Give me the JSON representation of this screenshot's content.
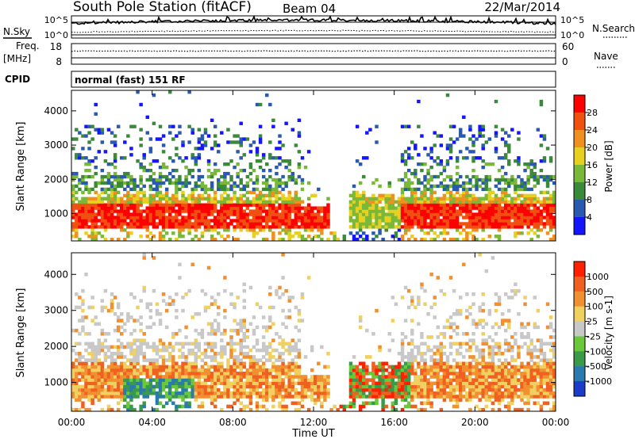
{
  "header": {
    "title": "South Pole Station (fitACF)",
    "beam": "Beam 04",
    "date": "22/Mar/2014"
  },
  "noise_panel": {
    "left_label": "N.Sky",
    "right_label": "N.Search",
    "left_ticks": [
      "10^5",
      "10^0"
    ],
    "right_ticks": [
      "10^5",
      "10^0"
    ]
  },
  "freq_panel": {
    "label_line1": "Freq.",
    "label_line2": "[MHz]",
    "left_ticks": [
      "18",
      "8"
    ],
    "right_label": "Nave",
    "right_ticks": [
      "60",
      "0"
    ]
  },
  "cpid": {
    "label": "CPID",
    "text": "normal (fast) 151 RF"
  },
  "chart_data": [
    {
      "type": "heatmap",
      "name": "power",
      "ylabel": "Slant Range [km]",
      "xlabel": "",
      "x_ticks": [
        "00:00",
        "04:00",
        "08:00",
        "12:00",
        "16:00",
        "20:00",
        "00:00"
      ],
      "y_ticks": [
        1000,
        2000,
        3000,
        4000
      ],
      "ylim": [
        200,
        4600
      ],
      "colorbar": {
        "label": "Power [dB]",
        "ticks": [
          "4",
          "8",
          "12",
          "16",
          "20",
          "24",
          "28"
        ],
        "colors": [
          "#1414ff",
          "#2a5ab0",
          "#3a8a3a",
          "#7ab83a",
          "#e8d020",
          "#f09020",
          "#f05010",
          "#ff0000"
        ]
      }
    },
    {
      "type": "heatmap",
      "name": "velocity",
      "ylabel": "Slant Range [km]",
      "xlabel": "Time UT",
      "x_ticks": [
        "00:00",
        "04:00",
        "08:00",
        "12:00",
        "16:00",
        "20:00",
        "00:00"
      ],
      "y_ticks": [
        1000,
        2000,
        3000,
        4000
      ],
      "ylim": [
        200,
        4600
      ],
      "colorbar": {
        "label": "Velocity [m s-1]",
        "ticks": [
          "1000",
          "500",
          "100",
          "25",
          "-25",
          "-100",
          "-500",
          "-1000"
        ],
        "colors": [
          "#1a3cc8",
          "#2a7ab0",
          "#3a9a4a",
          "#6ac83a",
          "#c8c8c8",
          "#f0d060",
          "#f09030",
          "#f06020",
          "#ff2000"
        ]
      }
    }
  ]
}
